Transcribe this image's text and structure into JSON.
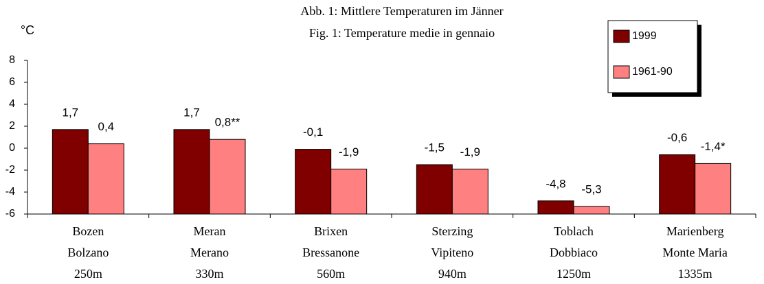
{
  "chart_data": {
    "type": "bar",
    "title": "Abb. 1: Mittlere Temperaturen im Jänner",
    "subtitle": "Fig. 1: Temperature medie in gennaio",
    "y_label": "°C",
    "categories": [
      [
        "Bozen",
        "Bolzano",
        "250m"
      ],
      [
        "Meran",
        "Merano",
        "330m"
      ],
      [
        "Brixen",
        "Bressanone",
        "560m"
      ],
      [
        "Sterzing",
        "Vipiteno",
        "940m"
      ],
      [
        "Toblach",
        "Dobbiaco",
        "1250m"
      ],
      [
        "Marienberg",
        "Monte Maria",
        "1335m"
      ]
    ],
    "series": [
      {
        "name": "1999",
        "color": "#800000",
        "values": [
          1.7,
          1.7,
          -0.1,
          -1.5,
          -4.8,
          -0.6
        ],
        "value_labels": [
          "1,7",
          "1,7",
          "-0,1",
          "-1,5",
          "-4,8",
          "-0,6"
        ]
      },
      {
        "name": "1961-90",
        "color": "#ff8080",
        "values": [
          0.4,
          0.8,
          -1.9,
          -1.9,
          -5.3,
          -1.4
        ],
        "value_labels": [
          "0,4",
          "0,8**",
          "-1,9",
          "-1,9",
          "-5,3",
          "-1,4*"
        ]
      }
    ],
    "ylim": [
      -6,
      8
    ],
    "yticks": [
      -6,
      -4,
      -2,
      0,
      2,
      4,
      6,
      8
    ],
    "legend": "top-right"
  }
}
